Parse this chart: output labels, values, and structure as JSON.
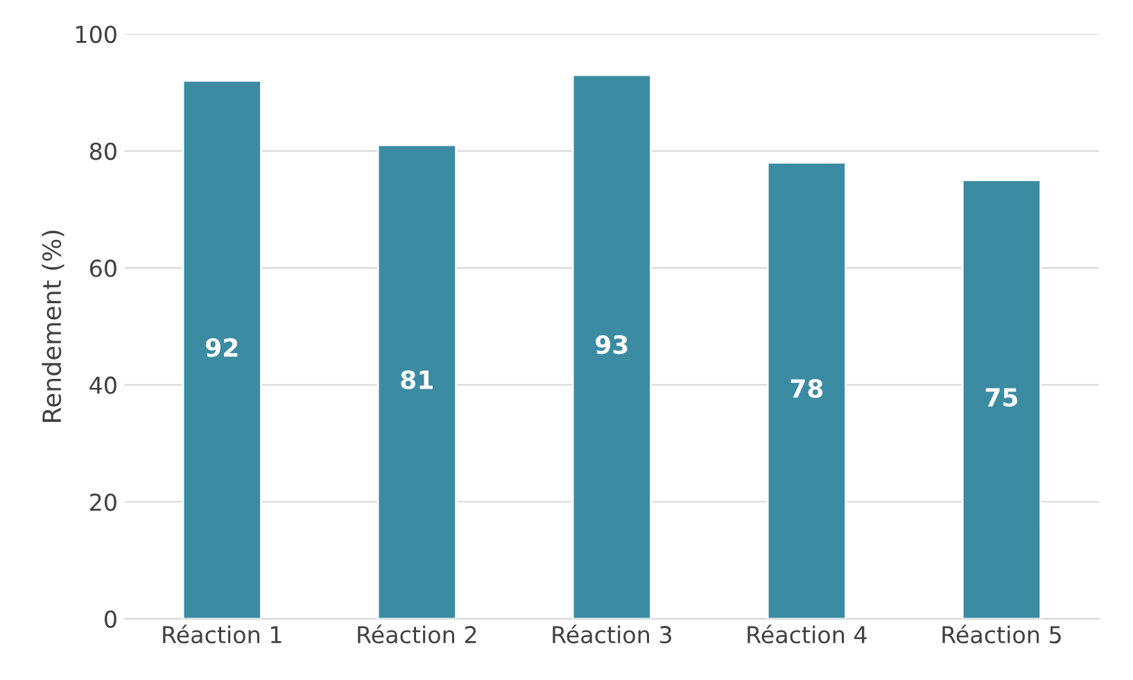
{
  "chart_data": {
    "type": "bar",
    "ylabel": "Rendement (%)",
    "categories": [
      "Réaction 1",
      "Réaction 2",
      "Réaction 3",
      "Réaction 4",
      "Réaction 5"
    ],
    "values": [
      92,
      81,
      93,
      78,
      75
    ],
    "color": "#3b8ba3",
    "ylim": [
      0,
      100
    ],
    "yticks": [
      0,
      20,
      40,
      60,
      80,
      100
    ],
    "grid": "y",
    "data_labels": true
  }
}
